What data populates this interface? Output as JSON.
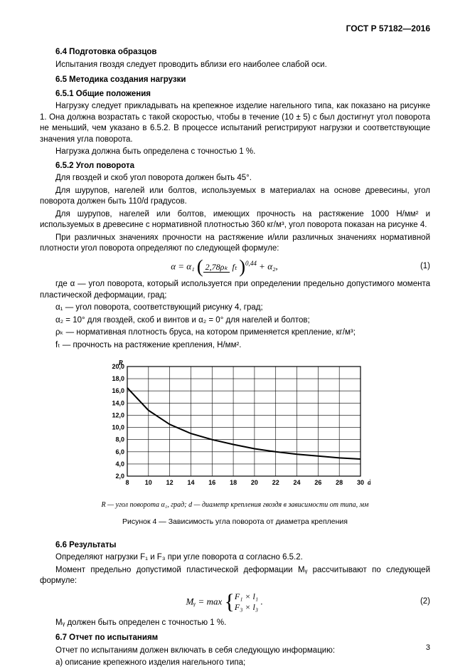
{
  "doc_header": "ГОСТ Р 57182—2016",
  "s64": {
    "title": "6.4  Подготовка образцов",
    "p1": "Испытания гвоздя следует проводить вблизи его наиболее слабой оси."
  },
  "s65": {
    "title": "6.5  Методика создания нагрузки"
  },
  "s651": {
    "title": "6.5.1  Общие положения",
    "p1": "Нагрузку следует прикладывать на крепежное изделие нагельного типа, как показано на рисунке 1. Она должна возрастать с такой скоростью, чтобы в течение (10 ± 5) с был достигнут угол поворота не меньший, чем указано в 6.5.2. В процессе испытаний регистрируют нагрузки и соответствующие значения угла поворота.",
    "p2": "Нагрузка должна быть определена с точностью 1 %."
  },
  "s652": {
    "title": "6.5.2  Угол поворота",
    "p1": "Для гвоздей и скоб угол поворота должен быть 45°.",
    "p2": "Для шурупов, нагелей или болтов, используемых в материалах на основе древесины, угол поворота должен быть 110/d градусов.",
    "p3": "Для шурупов, нагелей или болтов, имеющих прочность на растяжение 1000 Н/мм² и используемых в древесине с нормативной плотностью 360 кг/м³, угол поворота показан на рисунке 4.",
    "p4": "При различных значениях прочности на растяжение и/или различных значениях нормативной плотности угол поворота определяют по следующей формуле:"
  },
  "formula1": {
    "lhs": "α = α₁",
    "frac_top": "2,78ρₖ",
    "frac_bot": "fₜ",
    "exp": "0,44",
    "tail": " + α₂,",
    "num": "(1)"
  },
  "defs": {
    "d0": "где α — угол поворота, который используется при определении предельно допустимого момента  пластической деформации, град;",
    "d1": "α₁ — угол поворота, соответствующий рисунку 4, град;",
    "d2": "α₂ = 10° для гвоздей, скоб и винтов и α₂ = 0° для нагелей и болтов;",
    "d3": "ρₖ — нормативная плотность бруса, на котором применяется крепление, кг/м³;",
    "d4": "fₜ — прочность на растяжение крепления, Н/мм²."
  },
  "chart": {
    "type": "line",
    "y_label": "R",
    "x_label": "d",
    "x_ticks": [
      8,
      10,
      12,
      14,
      16,
      18,
      20,
      22,
      24,
      26,
      28,
      30
    ],
    "y_ticks": [
      2.0,
      4.0,
      6.0,
      8.0,
      10.0,
      12.0,
      14.0,
      16.0,
      18.0,
      20.0
    ],
    "y_tick_labels": [
      "2,0",
      "4,0",
      "6,0",
      "8,0",
      "10,0",
      "12,0",
      "14,0",
      "16,0",
      "18,0",
      "20,0"
    ],
    "xlim": [
      8,
      30
    ],
    "ylim": [
      2,
      20
    ],
    "grid_color": "#000000",
    "grid_width": 0.6,
    "line_color": "#000000",
    "line_width": 2.0,
    "background_color": "#ffffff",
    "tick_fontsize": 9,
    "axis_label_fontweight": "bold",
    "series": [
      {
        "x": 8,
        "y": 16.5
      },
      {
        "x": 10,
        "y": 12.8
      },
      {
        "x": 12,
        "y": 10.5
      },
      {
        "x": 14,
        "y": 9.0
      },
      {
        "x": 16,
        "y": 8.0
      },
      {
        "x": 18,
        "y": 7.2
      },
      {
        "x": 20,
        "y": 6.5
      },
      {
        "x": 22,
        "y": 6.0
      },
      {
        "x": 24,
        "y": 5.6
      },
      {
        "x": 26,
        "y": 5.3
      },
      {
        "x": 28,
        "y": 5.0
      },
      {
        "x": 30,
        "y": 4.8
      }
    ]
  },
  "chart_legend": "R — угол поворота α₁, град; d — диаметр крепления гвоздя в зависимости от типа, мм",
  "fig_caption": "Рисунок 4 — Зависимость угла поворота от диаметра крепления",
  "s66": {
    "title": "6.6  Результаты",
    "p1": "Определяют нагрузки F₁ и F₃ при угле поворота α  согласно 6.5.2.",
    "p2": "Момент предельно допустимой пластической деформации Mᵧ рассчитывают по следующей формуле:"
  },
  "formula2": {
    "lhs": "Mᵧ = max",
    "row1": "F₁ × l₁",
    "row2": "F₃ × l₃",
    "tail": ".",
    "num": "(2)"
  },
  "s66_p3": "Mᵧ должен быть определен с точностью 1 %.",
  "s67": {
    "title": "6.7  Отчет по испытаниям",
    "p1": "Отчет по испытаниям должен включать в себя следующую информацию:",
    "p2": "а)  описание крепежного изделия нагельного типа;"
  },
  "page_num": "3"
}
